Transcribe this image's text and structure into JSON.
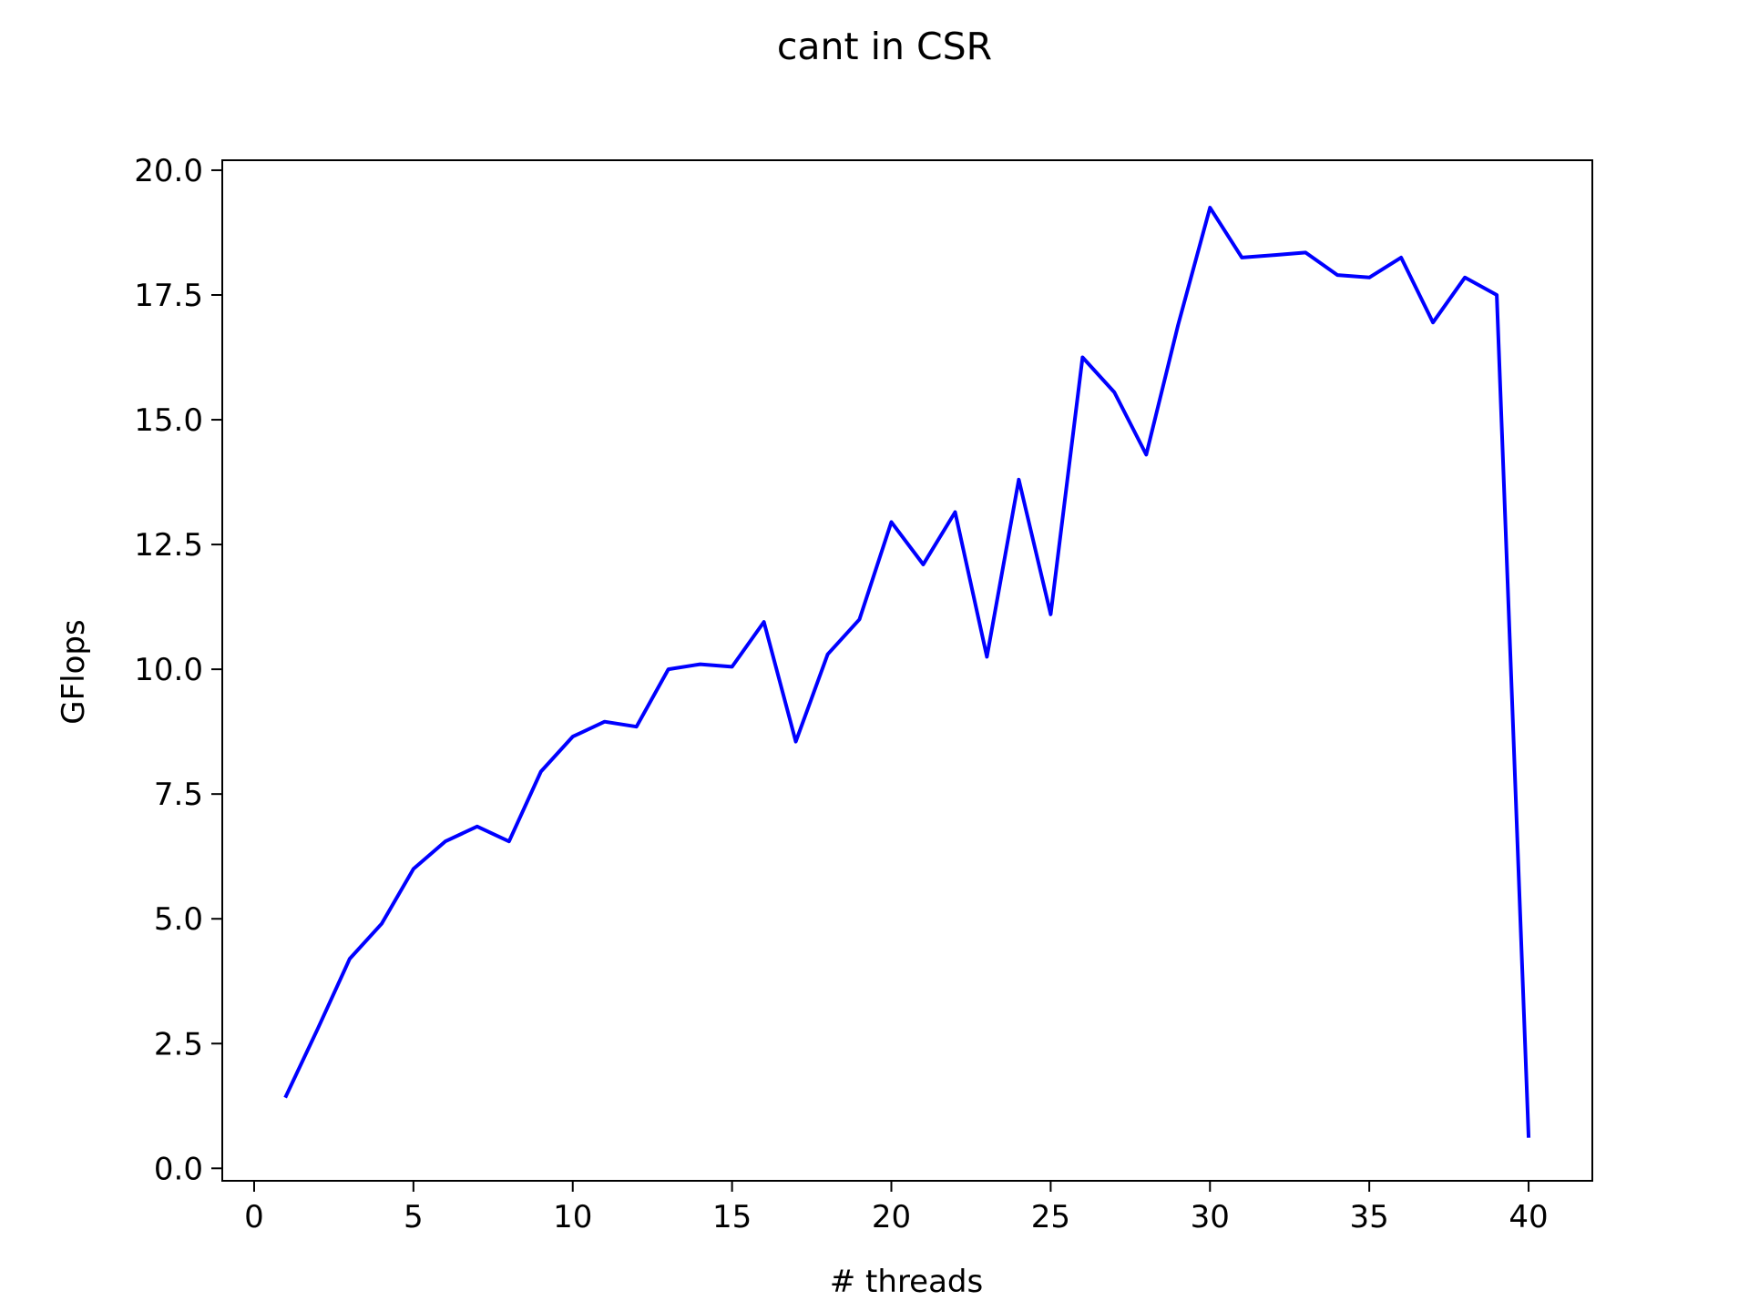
{
  "chart_data": {
    "type": "line",
    "title": "cant in CSR",
    "xlabel": "# threads",
    "ylabel": "GFlops",
    "xlim": [
      -1,
      42
    ],
    "ylim": [
      -0.25,
      20.2
    ],
    "xticks": [
      0,
      5,
      10,
      15,
      20,
      25,
      30,
      35,
      40
    ],
    "xtick_labels": [
      "0",
      "5",
      "10",
      "15",
      "20",
      "25",
      "30",
      "35",
      "40"
    ],
    "yticks": [
      0,
      2.5,
      5,
      7.5,
      10,
      12.5,
      15,
      17.5,
      20
    ],
    "ytick_labels": [
      "0.0",
      "2.5",
      "5.0",
      "7.5",
      "10.0",
      "12.5",
      "15.0",
      "17.5",
      "20.0"
    ],
    "grid": false,
    "series": [
      {
        "color": "#0000ff",
        "x": [
          1,
          2,
          3,
          4,
          5,
          6,
          7,
          8,
          9,
          10,
          11,
          12,
          13,
          14,
          15,
          16,
          17,
          18,
          19,
          20,
          21,
          22,
          23,
          24,
          25,
          26,
          27,
          28,
          29,
          30,
          31,
          32,
          33,
          34,
          35,
          36,
          37,
          38,
          39,
          40
        ],
        "values": [
          1.45,
          2.8,
          4.2,
          4.9,
          6.0,
          6.55,
          6.85,
          6.55,
          7.95,
          8.65,
          8.95,
          8.85,
          10.0,
          10.1,
          10.05,
          10.95,
          8.55,
          10.3,
          11.0,
          12.95,
          12.1,
          13.15,
          10.25,
          13.8,
          11.1,
          16.25,
          15.55,
          14.3,
          16.9,
          19.25,
          18.25,
          18.3,
          18.35,
          17.9,
          17.85,
          18.25,
          16.95,
          17.85,
          17.5,
          0.65
        ]
      }
    ]
  }
}
